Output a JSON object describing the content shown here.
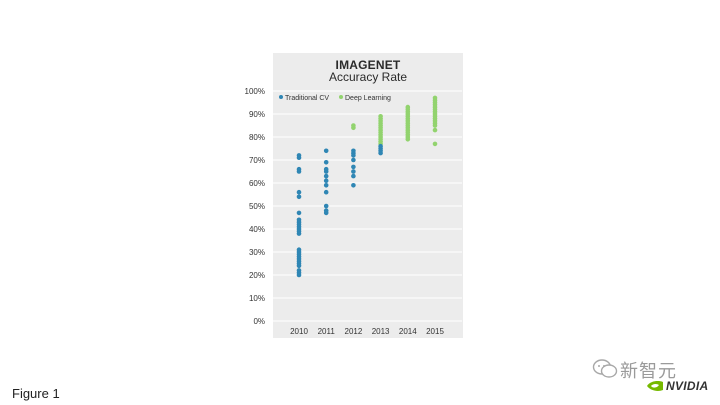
{
  "figure_label": "Figure 1",
  "watermark": {
    "text": "新智元",
    "brand": "NVIDIA"
  },
  "colors": {
    "traditional": "#2f86b4",
    "deep": "#92d36e",
    "panel": "#ececec",
    "grid": "#ffffff"
  },
  "chart_data": {
    "type": "scatter",
    "title": "IMAGENET",
    "subtitle": "Accuracy Rate",
    "categories": [
      "2010",
      "2011",
      "2012",
      "2013",
      "2014",
      "2015"
    ],
    "y_ticks": [
      "0%",
      "10%",
      "20%",
      "30%",
      "40%",
      "50%",
      "60%",
      "70%",
      "80%",
      "90%",
      "100%"
    ],
    "ylim": [
      0,
      100
    ],
    "grid": true,
    "legend_position": "top-left",
    "series": [
      {
        "name": "Traditional CV",
        "points": [
          {
            "x": "2010",
            "y": 72
          },
          {
            "x": "2010",
            "y": 71
          },
          {
            "x": "2010",
            "y": 66
          },
          {
            "x": "2010",
            "y": 65
          },
          {
            "x": "2010",
            "y": 56
          },
          {
            "x": "2010",
            "y": 54
          },
          {
            "x": "2010",
            "y": 47
          },
          {
            "x": "2010",
            "y": 44
          },
          {
            "x": "2010",
            "y": 43
          },
          {
            "x": "2010",
            "y": 42
          },
          {
            "x": "2010",
            "y": 41
          },
          {
            "x": "2010",
            "y": 40
          },
          {
            "x": "2010",
            "y": 39
          },
          {
            "x": "2010",
            "y": 38
          },
          {
            "x": "2010",
            "y": 31
          },
          {
            "x": "2010",
            "y": 30
          },
          {
            "x": "2010",
            "y": 29
          },
          {
            "x": "2010",
            "y": 28
          },
          {
            "x": "2010",
            "y": 27
          },
          {
            "x": "2010",
            "y": 26
          },
          {
            "x": "2010",
            "y": 25
          },
          {
            "x": "2010",
            "y": 24
          },
          {
            "x": "2010",
            "y": 22
          },
          {
            "x": "2010",
            "y": 21
          },
          {
            "x": "2010",
            "y": 20
          },
          {
            "x": "2011",
            "y": 74
          },
          {
            "x": "2011",
            "y": 69
          },
          {
            "x": "2011",
            "y": 66
          },
          {
            "x": "2011",
            "y": 65
          },
          {
            "x": "2011",
            "y": 63
          },
          {
            "x": "2011",
            "y": 61
          },
          {
            "x": "2011",
            "y": 59
          },
          {
            "x": "2011",
            "y": 56
          },
          {
            "x": "2011",
            "y": 50
          },
          {
            "x": "2011",
            "y": 48
          },
          {
            "x": "2011",
            "y": 47
          },
          {
            "x": "2012",
            "y": 74
          },
          {
            "x": "2012",
            "y": 73
          },
          {
            "x": "2012",
            "y": 72
          },
          {
            "x": "2012",
            "y": 70
          },
          {
            "x": "2012",
            "y": 67
          },
          {
            "x": "2012",
            "y": 65
          },
          {
            "x": "2012",
            "y": 63
          },
          {
            "x": "2012",
            "y": 59
          },
          {
            "x": "2013",
            "y": 76
          },
          {
            "x": "2013",
            "y": 75
          },
          {
            "x": "2013",
            "y": 74
          },
          {
            "x": "2013",
            "y": 73
          }
        ]
      },
      {
        "name": "Deep Learning",
        "points": [
          {
            "x": "2012",
            "y": 85
          },
          {
            "x": "2012",
            "y": 84
          },
          {
            "x": "2013",
            "y": 89
          },
          {
            "x": "2013",
            "y": 88
          },
          {
            "x": "2013",
            "y": 87
          },
          {
            "x": "2013",
            "y": 86
          },
          {
            "x": "2013",
            "y": 85
          },
          {
            "x": "2013",
            "y": 84
          },
          {
            "x": "2013",
            "y": 83
          },
          {
            "x": "2013",
            "y": 82
          },
          {
            "x": "2013",
            "y": 81
          },
          {
            "x": "2013",
            "y": 80
          },
          {
            "x": "2013",
            "y": 79
          },
          {
            "x": "2013",
            "y": 78
          },
          {
            "x": "2013",
            "y": 77
          },
          {
            "x": "2014",
            "y": 93
          },
          {
            "x": "2014",
            "y": 92
          },
          {
            "x": "2014",
            "y": 91
          },
          {
            "x": "2014",
            "y": 90
          },
          {
            "x": "2014",
            "y": 89
          },
          {
            "x": "2014",
            "y": 88
          },
          {
            "x": "2014",
            "y": 87
          },
          {
            "x": "2014",
            "y": 86
          },
          {
            "x": "2014",
            "y": 85
          },
          {
            "x": "2014",
            "y": 84
          },
          {
            "x": "2014",
            "y": 83
          },
          {
            "x": "2014",
            "y": 82
          },
          {
            "x": "2014",
            "y": 81
          },
          {
            "x": "2014",
            "y": 80
          },
          {
            "x": "2014",
            "y": 79
          },
          {
            "x": "2015",
            "y": 97
          },
          {
            "x": "2015",
            "y": 96
          },
          {
            "x": "2015",
            "y": 95
          },
          {
            "x": "2015",
            "y": 94
          },
          {
            "x": "2015",
            "y": 93
          },
          {
            "x": "2015",
            "y": 92
          },
          {
            "x": "2015",
            "y": 91
          },
          {
            "x": "2015",
            "y": 90
          },
          {
            "x": "2015",
            "y": 89
          },
          {
            "x": "2015",
            "y": 88
          },
          {
            "x": "2015",
            "y": 87
          },
          {
            "x": "2015",
            "y": 86
          },
          {
            "x": "2015",
            "y": 85
          },
          {
            "x": "2015",
            "y": 83
          },
          {
            "x": "2015",
            "y": 77
          }
        ]
      }
    ]
  }
}
